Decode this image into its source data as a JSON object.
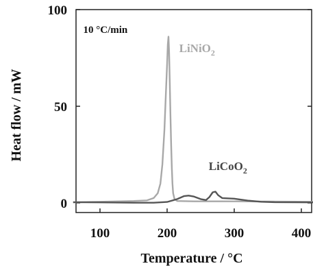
{
  "chart_data": {
    "type": "line",
    "xlabel": "Temperature / °C",
    "ylabel": "Heat flow / mW",
    "xlim": [
      60,
      420
    ],
    "ylim": [
      -2,
      100
    ],
    "x_ticks": [
      100,
      200,
      300,
      400
    ],
    "y_ticks": [
      0,
      50,
      100
    ],
    "grid": false,
    "series": [
      {
        "name": "LiNiO2",
        "color": "#a8a8a8",
        "points": [
          [
            60,
            0.3
          ],
          [
            100,
            0.6
          ],
          [
            150,
            1.0
          ],
          [
            170,
            1.3
          ],
          [
            180,
            2.5
          ],
          [
            186,
            5
          ],
          [
            190,
            10
          ],
          [
            193,
            20
          ],
          [
            196,
            38
          ],
          [
            198,
            55
          ],
          [
            200,
            72
          ],
          [
            201,
            82
          ],
          [
            202,
            86
          ],
          [
            203,
            78
          ],
          [
            204,
            62
          ],
          [
            205,
            45
          ],
          [
            206,
            30
          ],
          [
            207,
            18
          ],
          [
            208,
            10
          ],
          [
            209,
            5
          ],
          [
            211,
            2
          ],
          [
            215,
            1
          ],
          [
            240,
            0.8
          ],
          [
            300,
            0.8
          ],
          [
            350,
            0.7
          ],
          [
            420,
            0.6
          ]
        ]
      },
      {
        "name": "LiCoO2",
        "color": "#555555",
        "points": [
          [
            60,
            0.4
          ],
          [
            100,
            0.3
          ],
          [
            150,
            0.1
          ],
          [
            180,
            0.1
          ],
          [
            200,
            0.5
          ],
          [
            215,
            2
          ],
          [
            225,
            3.5
          ],
          [
            232,
            3.8
          ],
          [
            240,
            3.3
          ],
          [
            250,
            2
          ],
          [
            258,
            1.5
          ],
          [
            263,
            3
          ],
          [
            268,
            5.5
          ],
          [
            272,
            5.8
          ],
          [
            276,
            4
          ],
          [
            282,
            2.5
          ],
          [
            300,
            2.2
          ],
          [
            320,
            1.2
          ],
          [
            340,
            0.6
          ],
          [
            360,
            0.4
          ],
          [
            420,
            0.3
          ]
        ]
      }
    ],
    "annotations": [
      {
        "id": "rate",
        "text": "10 °C/min",
        "x": 75,
        "y": 88
      },
      {
        "id": "linio2",
        "base": "LiNiO",
        "sub": "2",
        "x": 218,
        "y": 78
      },
      {
        "id": "licoo2",
        "base": "LiCoO",
        "sub": "2",
        "x": 262,
        "y": 17
      }
    ]
  }
}
